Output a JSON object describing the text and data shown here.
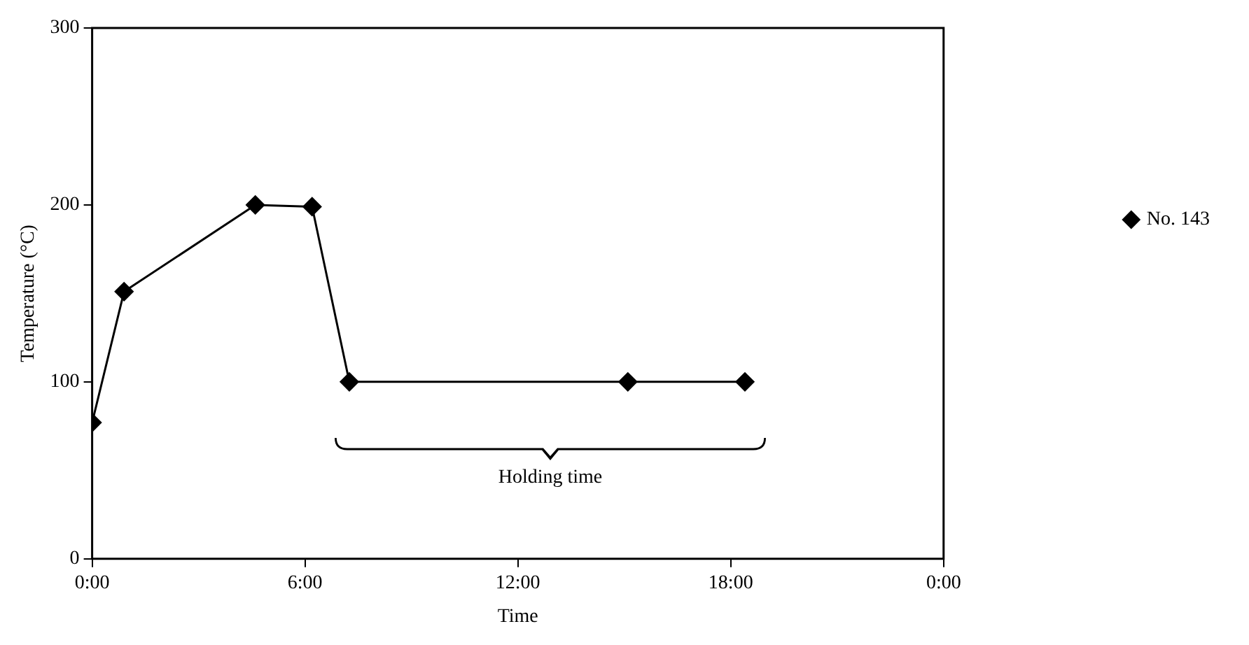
{
  "chart_data": {
    "type": "line",
    "xlabel": "Time",
    "ylabel": "Temperature (°C)",
    "x": [
      0,
      0.9,
      4.6,
      6.2,
      7.25,
      15.1,
      18.4
    ],
    "series": [
      {
        "name": "No. 143",
        "color": "#000000",
        "values": [
          77,
          151,
          200,
          199,
          100,
          100,
          100
        ]
      }
    ],
    "xlim": [
      0,
      24
    ],
    "xticks": [
      {
        "value": 0,
        "label": "0:00"
      },
      {
        "value": 6,
        "label": "6:00"
      },
      {
        "value": 12,
        "label": "12:00"
      },
      {
        "value": 18,
        "label": "18:00"
      },
      {
        "value": 24,
        "label": "0:00"
      }
    ],
    "ylim": [
      0,
      300
    ],
    "yticks": [
      0,
      100,
      200,
      300
    ],
    "annotations": [
      "Holding time"
    ],
    "grid": false,
    "legend": "right",
    "marker": "diamond",
    "line_style": "solid"
  }
}
